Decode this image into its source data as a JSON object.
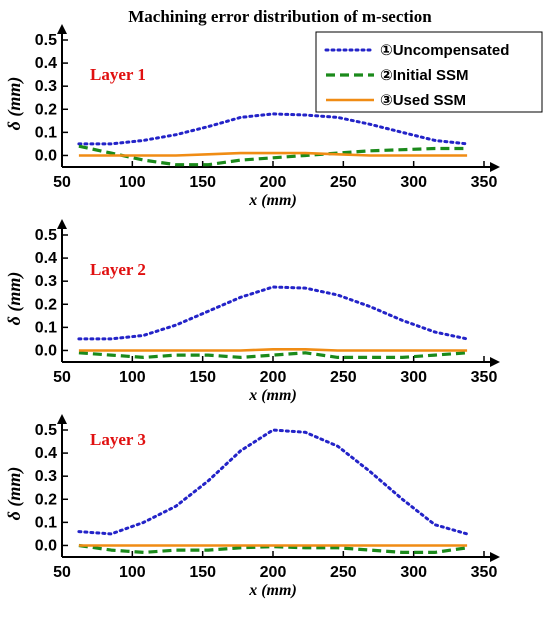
{
  "title": "Machining error distribution of m-section",
  "colors": {
    "uncompensated": "#2323c8",
    "initial": "#1b8a1b",
    "used": "#f08c14",
    "layer_label": "#e01010"
  },
  "legend": [
    {
      "key": "uncompensated",
      "label": "①Uncompensated",
      "style": "dotted"
    },
    {
      "key": "initial",
      "label": "②Initial SSM",
      "style": "dashed"
    },
    {
      "key": "used",
      "label": "③Used SSM",
      "style": "solid"
    }
  ],
  "chart_data": [
    {
      "type": "line",
      "panel_label": "Layer 1",
      "xlabel": "x (mm)",
      "ylabel": "δ (mm)",
      "xlim": [
        50,
        350
      ],
      "ylim": [
        -0.05,
        0.5
      ],
      "xticks": [
        50,
        100,
        150,
        200,
        250,
        300,
        350
      ],
      "yticks": [
        0.0,
        0.1,
        0.2,
        0.3,
        0.4,
        0.5
      ],
      "x": [
        62,
        85,
        108,
        131,
        154,
        177,
        200,
        223,
        246,
        269,
        292,
        315,
        338
      ],
      "series": [
        {
          "name": "①Uncompensated",
          "key": "uncompensated",
          "values": [
            0.05,
            0.05,
            0.065,
            0.09,
            0.125,
            0.165,
            0.18,
            0.175,
            0.165,
            0.135,
            0.1,
            0.065,
            0.05
          ]
        },
        {
          "name": "②Initial SSM",
          "key": "initial",
          "values": [
            0.04,
            0.01,
            -0.02,
            -0.04,
            -0.04,
            -0.02,
            -0.01,
            0.0,
            0.01,
            0.02,
            0.025,
            0.03,
            0.03
          ]
        },
        {
          "name": "③Used SSM",
          "key": "used",
          "values": [
            0.0,
            0.0,
            0.0,
            0.0,
            0.005,
            0.01,
            0.01,
            0.01,
            0.005,
            0.0,
            0.0,
            0.0,
            0.0
          ]
        }
      ]
    },
    {
      "type": "line",
      "panel_label": "Layer 2",
      "xlabel": "x (mm)",
      "ylabel": "δ (mm)",
      "xlim": [
        50,
        350
      ],
      "ylim": [
        -0.05,
        0.5
      ],
      "xticks": [
        50,
        100,
        150,
        200,
        250,
        300,
        350
      ],
      "yticks": [
        0.0,
        0.1,
        0.2,
        0.3,
        0.4,
        0.5
      ],
      "x": [
        62,
        85,
        108,
        131,
        154,
        177,
        200,
        223,
        246,
        269,
        292,
        315,
        338
      ],
      "series": [
        {
          "name": "①Uncompensated",
          "key": "uncompensated",
          "values": [
            0.05,
            0.05,
            0.065,
            0.11,
            0.17,
            0.23,
            0.275,
            0.27,
            0.24,
            0.19,
            0.13,
            0.08,
            0.05
          ]
        },
        {
          "name": "②Initial SSM",
          "key": "initial",
          "values": [
            -0.01,
            -0.02,
            -0.03,
            -0.02,
            -0.02,
            -0.03,
            -0.02,
            -0.01,
            -0.03,
            -0.03,
            -0.03,
            -0.02,
            -0.01
          ]
        },
        {
          "name": "③Used SSM",
          "key": "used",
          "values": [
            0.0,
            0.0,
            0.0,
            0.0,
            0.0,
            0.0,
            0.005,
            0.005,
            0.0,
            0.0,
            0.0,
            0.0,
            0.0
          ]
        }
      ]
    },
    {
      "type": "line",
      "panel_label": "Layer 3",
      "xlabel": "x (mm)",
      "ylabel": "δ (mm)",
      "xlim": [
        50,
        350
      ],
      "ylim": [
        -0.05,
        0.5
      ],
      "xticks": [
        50,
        100,
        150,
        200,
        250,
        300,
        350
      ],
      "yticks": [
        0.0,
        0.1,
        0.2,
        0.3,
        0.4,
        0.5
      ],
      "x": [
        62,
        85,
        108,
        131,
        154,
        177,
        200,
        223,
        246,
        269,
        292,
        315,
        338
      ],
      "series": [
        {
          "name": "①Uncompensated",
          "key": "uncompensated",
          "values": [
            0.06,
            0.05,
            0.1,
            0.17,
            0.28,
            0.41,
            0.5,
            0.49,
            0.43,
            0.32,
            0.2,
            0.09,
            0.05
          ]
        },
        {
          "name": "②Initial SSM",
          "key": "initial",
          "values": [
            0.0,
            -0.02,
            -0.03,
            -0.02,
            -0.02,
            -0.01,
            -0.005,
            -0.01,
            -0.01,
            -0.02,
            -0.03,
            -0.03,
            -0.01
          ]
        },
        {
          "name": "③Used SSM",
          "key": "used",
          "values": [
            0.0,
            0.0,
            0.0,
            0.0,
            0.0,
            0.0,
            0.0,
            0.0,
            0.0,
            0.0,
            0.0,
            0.0,
            0.0
          ]
        }
      ]
    }
  ]
}
